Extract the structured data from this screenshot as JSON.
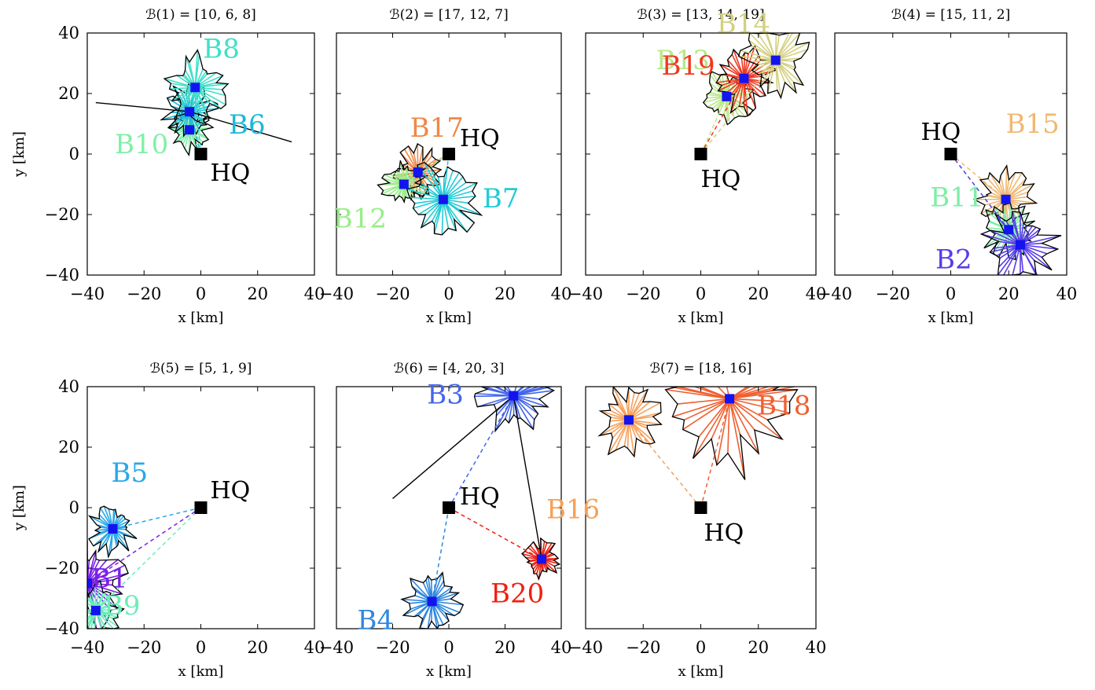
{
  "chart_data": [
    {
      "type": "scatter",
      "title": "ℬ(1) = [10, 6, 8]",
      "xlabel": "x [km]",
      "ylabel": "y [km]",
      "xlim": [
        -40,
        40
      ],
      "ylim": [
        -40,
        40
      ],
      "xticks": [
        "−40",
        "−20",
        "0",
        "20",
        "40"
      ],
      "yticks": [
        "−40",
        "−20",
        "0",
        "20",
        "40"
      ],
      "hq": {
        "label": "HQ",
        "x": 0,
        "y": 0
      },
      "clusters": [
        {
          "label": "B10",
          "color": "#7FF0A8",
          "depot": [
            -4,
            8
          ],
          "spread": 8
        },
        {
          "label": "B6",
          "color": "#1CB8DA",
          "depot": [
            -4,
            14
          ],
          "spread": 10
        },
        {
          "label": "B8",
          "color": "#40E0C8",
          "depot": [
            -2,
            22
          ],
          "spread": 12
        }
      ],
      "tours": [
        {
          "from": [
            -4,
            14
          ],
          "to": [
            32,
            4
          ]
        },
        {
          "from": [
            -4,
            14
          ],
          "to": [
            -37,
            17
          ]
        }
      ]
    },
    {
      "type": "scatter",
      "title": "ℬ(2) = [17, 12, 7]",
      "xlabel": "x [km]",
      "ylabel": "",
      "xlim": [
        -40,
        40
      ],
      "ylim": [
        -40,
        40
      ],
      "xticks": [
        "−40",
        "−20",
        "0",
        "20",
        "40"
      ],
      "yticks": [],
      "hq": {
        "label": "HQ",
        "x": 0,
        "y": 0
      },
      "clusters": [
        {
          "label": "B17",
          "color": "#F08848",
          "depot": [
            -11,
            -6
          ],
          "spread": 9
        },
        {
          "label": "B12",
          "color": "#98EE88",
          "depot": [
            -16,
            -10
          ],
          "spread": 9
        },
        {
          "label": "B7",
          "color": "#20CCD4",
          "depot": [
            -2,
            -15
          ],
          "spread": 14
        }
      ],
      "tours": []
    },
    {
      "type": "scatter",
      "title": "ℬ(3) = [13, 14, 19]",
      "xlabel": "x [km]",
      "ylabel": "",
      "xlim": [
        -40,
        40
      ],
      "ylim": [
        -40,
        40
      ],
      "xticks": [
        "−40",
        "−20",
        "0",
        "20",
        "40"
      ],
      "yticks": [],
      "hq": {
        "label": "HQ",
        "x": 0,
        "y": 0
      },
      "clusters": [
        {
          "label": "B13",
          "color": "#B8E888",
          "depot": [
            9,
            19
          ],
          "spread": 10
        },
        {
          "label": "B19",
          "color": "#F03820",
          "depot": [
            15,
            25
          ],
          "spread": 12
        },
        {
          "label": "B14",
          "color": "#D4D080",
          "depot": [
            26,
            31
          ],
          "spread": 13
        }
      ],
      "tours": []
    },
    {
      "type": "scatter",
      "title": "ℬ(4) = [15, 11, 2]",
      "xlabel": "x [km]",
      "ylabel": "",
      "xlim": [
        -40,
        40
      ],
      "ylim": [
        -40,
        40
      ],
      "xticks": [
        "−40",
        "−20",
        "0",
        "20",
        "40"
      ],
      "yticks": [],
      "hq": {
        "label": "HQ",
        "x": 0,
        "y": 0
      },
      "clusters": [
        {
          "label": "B15",
          "color": "#F0B870",
          "depot": [
            19,
            -15
          ],
          "spread": 11
        },
        {
          "label": "B11",
          "color": "#7EEEA8",
          "depot": [
            20,
            -25
          ],
          "spread": 10
        },
        {
          "label": "B2",
          "color": "#5A3CE8",
          "depot": [
            24,
            -30
          ],
          "spread": 14
        }
      ],
      "tours": []
    },
    {
      "type": "scatter",
      "title": "ℬ(5) = [5, 1, 9]",
      "xlabel": "x [km]",
      "ylabel": "y [km]",
      "xlim": [
        -40,
        40
      ],
      "ylim": [
        -40,
        40
      ],
      "xticks": [
        "−40",
        "−20",
        "0",
        "20",
        "40"
      ],
      "yticks": [
        "−40",
        "−20",
        "0",
        "20",
        "40"
      ],
      "hq": {
        "label": "HQ",
        "x": 0,
        "y": 0
      },
      "clusters": [
        {
          "label": "B5",
          "color": "#28A8E8",
          "depot": [
            -31,
            -7
          ],
          "spread": 9
        },
        {
          "label": "B1",
          "color": "#7A20E8",
          "depot": [
            -40,
            -25
          ],
          "spread": 16
        },
        {
          "label": "B9",
          "color": "#6AEEB8",
          "depot": [
            -37,
            -34
          ],
          "spread": 10
        }
      ],
      "tours": []
    },
    {
      "type": "scatter",
      "title": "ℬ(6) = [4, 20, 3]",
      "xlabel": "x [km]",
      "ylabel": "",
      "xlim": [
        -40,
        40
      ],
      "ylim": [
        -40,
        40
      ],
      "xticks": [
        "−40",
        "−20",
        "0",
        "20",
        "40"
      ],
      "yticks": [],
      "hq": {
        "label": "HQ",
        "x": 0,
        "y": 0
      },
      "clusters": [
        {
          "label": "B3",
          "color": "#4466E8",
          "depot": [
            23,
            37
          ],
          "spread": 14
        },
        {
          "label": "B4",
          "color": "#3088E0",
          "depot": [
            -6,
            -31
          ],
          "spread": 11
        },
        {
          "label": "B20",
          "color": "#F02010",
          "depot": [
            33,
            -17
          ],
          "spread": 7
        }
      ],
      "tours": [
        {
          "from": [
            23,
            37
          ],
          "to": [
            33,
            -17
          ]
        },
        {
          "from": [
            23,
            37
          ],
          "to": [
            -20,
            3
          ]
        }
      ]
    },
    {
      "type": "scatter",
      "title": "ℬ(7) = [18, 16]",
      "xlabel": "x [km]",
      "ylabel": "",
      "xlim": [
        -40,
        40
      ],
      "ylim": [
        -40,
        40
      ],
      "xticks": [
        "−40",
        "−20",
        "0",
        "20",
        "40"
      ],
      "yticks": [],
      "hq": {
        "label": "HQ",
        "x": 0,
        "y": 0
      },
      "clusters": [
        {
          "label": "B18",
          "color": "#F06030",
          "depot": [
            10,
            36
          ],
          "spread": 26
        },
        {
          "label": "B16",
          "color": "#F8A058",
          "depot": [
            -25,
            29
          ],
          "spread": 13
        }
      ],
      "tours": []
    }
  ]
}
